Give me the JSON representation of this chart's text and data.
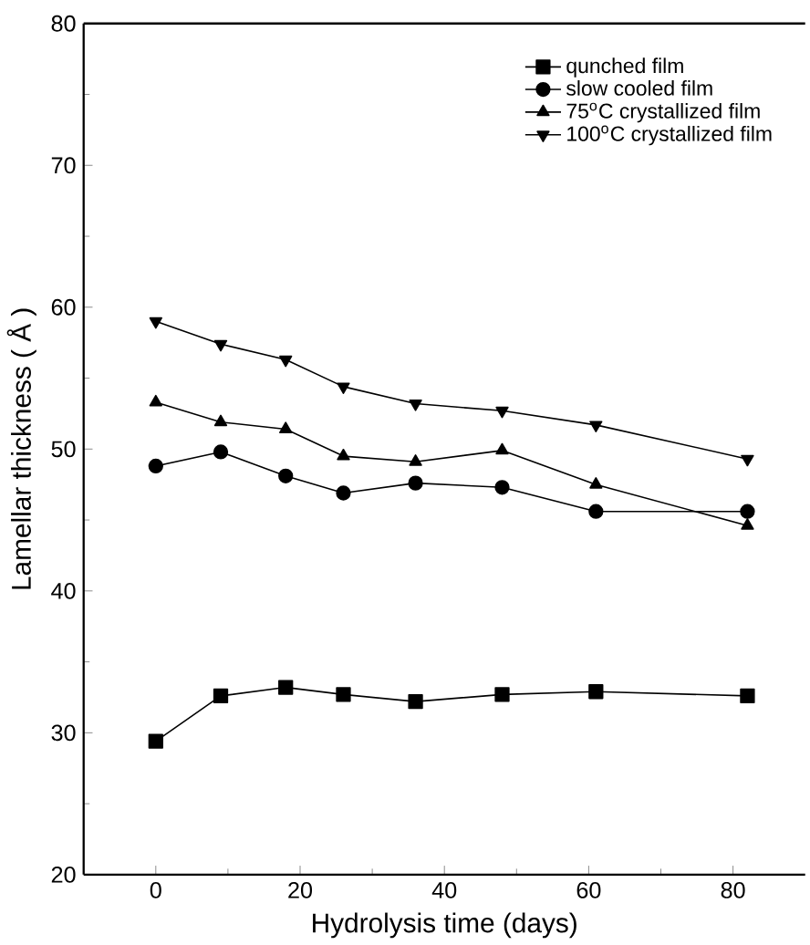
{
  "chart_data": {
    "type": "line",
    "xlabel": "Hydrolysis time (days)",
    "ylabel": "Lamellar thickness ( Å )",
    "x": [
      0,
      9,
      18,
      26,
      36,
      48,
      61,
      82
    ],
    "series": [
      {
        "name": "qunched film",
        "color": "#000000",
        "marker": "square",
        "values": [
          29.4,
          32.6,
          33.2,
          32.7,
          32.2,
          32.7,
          32.9,
          32.6
        ]
      },
      {
        "name": "slow cooled film",
        "color": "#000000",
        "marker": "circle",
        "values": [
          48.8,
          49.8,
          48.1,
          46.9,
          47.6,
          47.3,
          45.6,
          45.6
        ]
      },
      {
        "name": "75$^{o}$C crystallized film",
        "color": "#000000",
        "marker": "triangle",
        "values": [
          53.3,
          51.9,
          51.4,
          49.5,
          49.1,
          49.9,
          47.5,
          44.6
        ]
      },
      {
        "name": "100$^{o}$C crystallized film",
        "color": "#000000",
        "marker": "triangle down",
        "values": [
          59.0,
          57.4,
          56.3,
          54.4,
          53.2,
          52.7,
          51.7,
          49.3
        ]
      }
    ],
    "xlim": [
      -10,
      90
    ],
    "ylim": [
      20,
      80
    ],
    "xticks": [
      0,
      20,
      40,
      60,
      80
    ],
    "yticks": [
      20,
      30,
      40,
      50,
      60,
      70,
      80
    ],
    "legend": "top right",
    "line_style": "solid",
    "grid": false
  }
}
